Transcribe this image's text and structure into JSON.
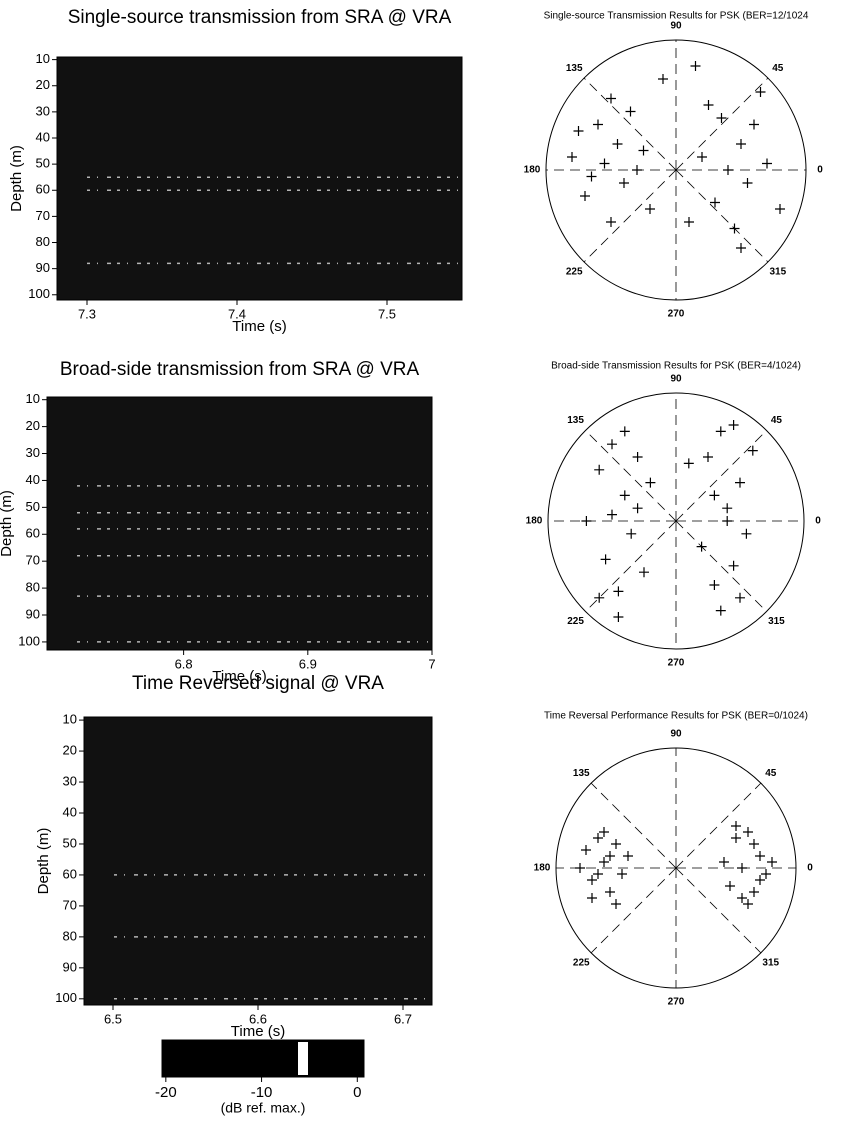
{
  "chart_data": [
    {
      "type": "depth-image",
      "title": "Single-source transmission from SRA  @ VRA",
      "xlabel": "Time (s)",
      "ylabel": "Depth (m)",
      "xlim": [
        7.28,
        7.55
      ],
      "xticks": [
        7.3,
        7.4,
        7.5
      ],
      "ylim": [
        9,
        102
      ],
      "yticks": [
        10,
        20,
        30,
        40,
        50,
        60,
        70,
        80,
        90,
        100
      ],
      "bands": [
        55,
        60,
        88
      ],
      "color": "#111111"
    },
    {
      "type": "polar-scatter",
      "title": "Single-source Transmission Results for PSK (BER=12/1024",
      "thetaticks": [
        0,
        45,
        90,
        135,
        180,
        225,
        270,
        315
      ],
      "xlim": [
        -1,
        1
      ],
      "ylim": [
        -1,
        1
      ],
      "x": [
        -0.8,
        -0.7,
        -0.6,
        -0.55,
        -0.5,
        -0.45,
        -0.4,
        -0.35,
        -0.3,
        -0.2,
        -0.65,
        -0.5,
        -0.75,
        -0.25,
        0.2,
        0.3,
        0.35,
        0.4,
        0.45,
        0.5,
        0.55,
        0.6,
        0.7,
        0.8,
        0.25,
        0.5,
        0.65,
        0.1,
        -0.1,
        0.15
      ],
      "y": [
        0.1,
        -0.2,
        0.35,
        0.05,
        -0.4,
        0.2,
        -0.1,
        0.45,
        0.0,
        -0.3,
        -0.05,
        0.55,
        0.3,
        0.15,
        0.1,
        -0.25,
        0.4,
        0.0,
        -0.45,
        0.2,
        -0.1,
        0.35,
        0.05,
        -0.3,
        0.5,
        -0.6,
        0.6,
        -0.4,
        0.7,
        0.8
      ]
    },
    {
      "type": "depth-image",
      "title": "Broad-side transmission from SRA @ VRA",
      "xlabel": "Time (s)",
      "ylabel": "Depth (m)",
      "xlim": [
        6.69,
        7.0
      ],
      "xticks": [
        6.8,
        6.9,
        7.0
      ],
      "ylim": [
        9,
        103
      ],
      "yticks": [
        10,
        20,
        30,
        40,
        50,
        60,
        70,
        80,
        90,
        100
      ],
      "bands": [
        42,
        52,
        58,
        68,
        83,
        100
      ],
      "color": "#111111"
    },
    {
      "type": "polar-scatter",
      "title": "Broad-side Transmission Results for PSK (BER=4/1024)",
      "thetaticks": [
        0,
        45,
        90,
        135,
        180,
        225,
        270,
        315
      ],
      "xlim": [
        -1,
        1
      ],
      "ylim": [
        -1,
        1
      ],
      "x": [
        -0.7,
        -0.6,
        -0.55,
        -0.5,
        -0.45,
        -0.4,
        -0.35,
        -0.3,
        -0.25,
        -0.5,
        -0.6,
        -0.4,
        -0.45,
        -0.3,
        -0.2,
        0.2,
        0.25,
        0.3,
        0.35,
        0.4,
        0.45,
        0.5,
        0.55,
        0.6,
        0.35,
        0.45,
        0.3,
        0.5,
        0.4,
        0.1
      ],
      "y": [
        0.0,
        0.4,
        -0.3,
        0.6,
        -0.55,
        0.2,
        -0.1,
        0.5,
        -0.4,
        0.05,
        -0.6,
        0.7,
        -0.75,
        0.1,
        0.3,
        -0.2,
        0.5,
        -0.5,
        0.7,
        0.1,
        -0.35,
        0.3,
        -0.1,
        0.55,
        -0.7,
        0.75,
        0.2,
        -0.6,
        0.0,
        0.45
      ]
    },
    {
      "type": "depth-image",
      "title": "Time Reversed signal @ VRA",
      "xlabel": "Time (s)",
      "ylabel": "Depth (m)",
      "xlim": [
        6.48,
        6.72
      ],
      "xticks": [
        6.5,
        6.6,
        6.7
      ],
      "ylim": [
        9,
        102
      ],
      "yticks": [
        10,
        20,
        30,
        40,
        50,
        60,
        70,
        80,
        90,
        100
      ],
      "bands": [
        60,
        80,
        100
      ],
      "color": "#111111"
    },
    {
      "type": "polar-scatter",
      "title": "Time Reversal Performance Results for PSK (BER=0/1024)",
      "thetaticks": [
        0,
        45,
        90,
        135,
        180,
        225,
        270,
        315
      ],
      "xlim": [
        -1,
        1
      ],
      "ylim": [
        -1,
        1
      ],
      "x": [
        -0.8,
        -0.75,
        -0.7,
        -0.65,
        -0.6,
        -0.55,
        -0.5,
        -0.45,
        -0.4,
        -0.6,
        -0.7,
        -0.5,
        -0.55,
        -0.65,
        0.4,
        0.45,
        0.5,
        0.55,
        0.6,
        0.65,
        0.7,
        0.75,
        0.8,
        0.6,
        0.5,
        0.65,
        0.55,
        0.7
      ],
      "y": [
        0.0,
        0.15,
        -0.1,
        0.25,
        0.05,
        -0.2,
        0.2,
        -0.05,
        0.1,
        0.3,
        -0.25,
        -0.3,
        0.1,
        -0.05,
        0.05,
        -0.15,
        0.25,
        0.0,
        0.3,
        -0.2,
        0.1,
        -0.05,
        0.05,
        -0.3,
        0.35,
        0.2,
        -0.25,
        -0.1
      ]
    },
    {
      "type": "colorbar",
      "label": "(dB ref. max.)",
      "xlim": [
        -20.4,
        0.7
      ],
      "xticks": [
        -20,
        -10,
        0
      ]
    }
  ]
}
